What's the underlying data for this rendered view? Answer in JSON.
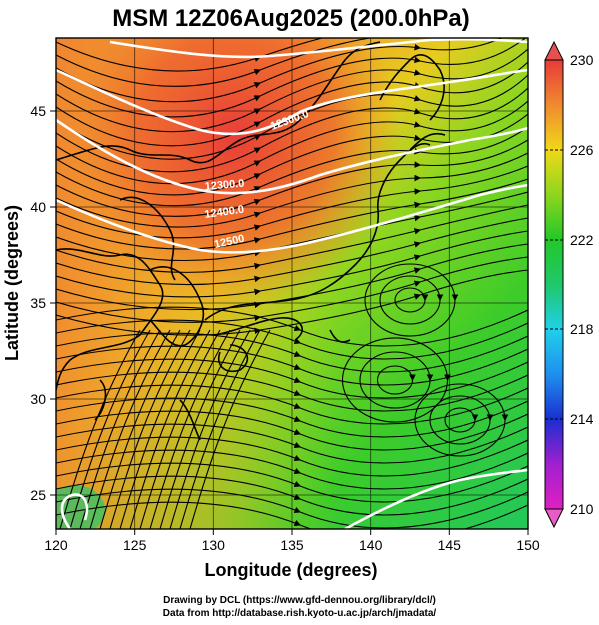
{
  "title": "MSM 12Z06Aug2025 (200.0hPa)",
  "xaxis": {
    "label": "Longitude (degrees)",
    "ticks": [
      "120",
      "125",
      "130",
      "135",
      "140",
      "145",
      "150"
    ]
  },
  "yaxis": {
    "label": "Latitude  (degrees)",
    "ticks": [
      "25",
      "30",
      "35",
      "40",
      "45"
    ]
  },
  "colorbar": {
    "ticks": [
      "230",
      "226",
      "222",
      "218",
      "214",
      "210"
    ],
    "min": 210,
    "max": 230,
    "stops": [
      {
        "value": 210,
        "color": "#e020c0"
      },
      {
        "value": 212,
        "color": "#a020d0"
      },
      {
        "value": 214,
        "color": "#1a2fd0"
      },
      {
        "value": 216,
        "color": "#1f8ff0"
      },
      {
        "value": 218,
        "color": "#20d0e8"
      },
      {
        "value": 220,
        "color": "#1fc86a"
      },
      {
        "value": 222,
        "color": "#22c828"
      },
      {
        "value": 224,
        "color": "#8ed61e"
      },
      {
        "value": 226,
        "color": "#f0d818"
      },
      {
        "value": 228,
        "color": "#f08a30"
      },
      {
        "value": 230,
        "color": "#e83a3a"
      }
    ]
  },
  "contours": [
    {
      "label": "12300.0"
    },
    {
      "label": "12300.0"
    },
    {
      "label": "12400.0"
    },
    {
      "label": "12500"
    }
  ],
  "footer": {
    "line1": "Drawing by DCL (https://www.gfd-dennou.org/library/dcl/)",
    "line2": "Data from http://database.rish.kyoto-u.ac.jp/arch/jmadata/"
  }
}
